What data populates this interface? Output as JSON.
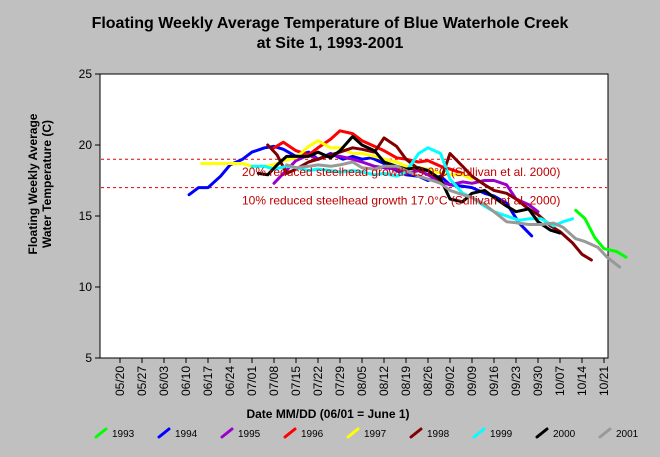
{
  "title_line1": "Floating Weekly Average Temperature of Blue Waterhole Creek",
  "title_line2": "at Site 1, 1993-2001",
  "chart_data": {
    "type": "line",
    "title": "Floating Weekly Average Temperature of Blue Waterhole Creek at Site 1, 1993-2001",
    "xlabel": "Date MM/DD (06/01 = June 1)",
    "ylabel_line1": "Floating Weekly Average",
    "ylabel_line2": "Water Temperature (C)",
    "ylim": [
      5,
      25
    ],
    "yticks": [
      5,
      10,
      15,
      20,
      25
    ],
    "x_ticks": [
      "05/20",
      "05/27",
      "06/03",
      "06/10",
      "06/17",
      "06/24",
      "07/01",
      "07/08",
      "07/15",
      "07/22",
      "07/29",
      "08/05",
      "08/12",
      "08/19",
      "08/26",
      "09/02",
      "09/09",
      "09/16",
      "09/23",
      "09/30",
      "10/07",
      "10/14",
      "10/21"
    ],
    "grid": false,
    "legend_position": "bottom",
    "reference_lines": [
      {
        "y": 19,
        "label": "20% reduced steelhead growth 19.0°C (Sullivan et al. 2000)",
        "color": "#e00000"
      },
      {
        "y": 17,
        "label": "10% reduced steelhead growth 17.0°C (Sullivan et al. 2000)",
        "color": "#e00000"
      }
    ],
    "series": [
      {
        "name": "1993",
        "color": "#00ff00",
        "points": [
          [
            "10/12",
            15.4
          ],
          [
            "10/15",
            14.8
          ],
          [
            "10/18",
            13.5
          ],
          [
            "10/21",
            12.7
          ],
          [
            "10/25",
            12.5
          ],
          [
            "10/28",
            12.1
          ]
        ]
      },
      {
        "name": "1994",
        "color": "#0000ff",
        "points": [
          [
            "06/11",
            16.5
          ],
          [
            "06/14",
            17.0
          ],
          [
            "06/17",
            17.0
          ],
          [
            "06/21",
            17.8
          ],
          [
            "06/24",
            18.6
          ],
          [
            "06/28",
            19.0
          ],
          [
            "07/01",
            19.5
          ],
          [
            "07/05",
            19.8
          ],
          [
            "07/08",
            19.9
          ],
          [
            "07/11",
            19.7
          ],
          [
            "07/15",
            19.2
          ],
          [
            "07/19",
            19.5
          ],
          [
            "07/22",
            19.0
          ],
          [
            "07/26",
            19.4
          ],
          [
            "07/30",
            19.0
          ],
          [
            "08/02",
            19.2
          ],
          [
            "08/05",
            19.0
          ],
          [
            "08/08",
            19.1
          ],
          [
            "08/12",
            18.7
          ],
          [
            "08/16",
            18.2
          ],
          [
            "08/19",
            17.9
          ],
          [
            "08/23",
            17.8
          ],
          [
            "08/26",
            17.5
          ],
          [
            "08/30",
            17.8
          ],
          [
            "09/02",
            17.2
          ],
          [
            "09/06",
            17.1
          ],
          [
            "09/09",
            17.0
          ],
          [
            "09/13",
            16.6
          ],
          [
            "09/16",
            16.4
          ],
          [
            "09/20",
            15.9
          ],
          [
            "09/24",
            14.5
          ],
          [
            "09/28",
            13.6
          ]
        ]
      },
      {
        "name": "1995",
        "color": "#9900cc",
        "points": [
          [
            "07/08",
            17.3
          ],
          [
            "07/11",
            18.0
          ],
          [
            "07/15",
            18.9
          ],
          [
            "07/19",
            19.3
          ],
          [
            "07/22",
            19.0
          ],
          [
            "07/26",
            19.3
          ],
          [
            "07/29",
            19.2
          ],
          [
            "08/02",
            19.0
          ],
          [
            "08/05",
            18.8
          ],
          [
            "08/09",
            18.5
          ],
          [
            "08/12",
            18.4
          ],
          [
            "08/16",
            18.3
          ],
          [
            "08/19",
            18.0
          ],
          [
            "08/23",
            18.2
          ],
          [
            "08/26",
            17.9
          ],
          [
            "08/30",
            17.4
          ],
          [
            "09/02",
            17.2
          ],
          [
            "09/06",
            17.4
          ],
          [
            "09/09",
            17.3
          ],
          [
            "09/13",
            17.5
          ],
          [
            "09/16",
            17.5
          ],
          [
            "09/20",
            17.2
          ],
          [
            "09/23",
            16.2
          ],
          [
            "09/27",
            15.8
          ],
          [
            "09/30",
            15.3
          ]
        ]
      },
      {
        "name": "1996",
        "color": "#ff0000",
        "points": [
          [
            "07/08",
            19.8
          ],
          [
            "07/11",
            20.2
          ],
          [
            "07/15",
            19.6
          ],
          [
            "07/19",
            19.3
          ],
          [
            "07/22",
            19.8
          ],
          [
            "07/26",
            20.4
          ],
          [
            "07/29",
            21.0
          ],
          [
            "08/02",
            20.8
          ],
          [
            "08/05",
            20.3
          ],
          [
            "08/09",
            19.9
          ],
          [
            "08/12",
            19.6
          ],
          [
            "08/16",
            19.1
          ],
          [
            "08/19",
            19.0
          ],
          [
            "08/23",
            18.8
          ],
          [
            "08/26",
            18.9
          ],
          [
            "08/30",
            18.5
          ],
          [
            "09/02",
            18.3
          ],
          [
            "09/06",
            18.0
          ]
        ]
      },
      {
        "name": "1997",
        "color": "#ffff00",
        "points": [
          [
            "06/15",
            18.7
          ],
          [
            "06/18",
            18.7
          ],
          [
            "06/21",
            18.7
          ],
          [
            "06/24",
            18.7
          ],
          [
            "06/28",
            18.7
          ],
          [
            "07/01",
            18.5
          ],
          [
            "07/05",
            18.5
          ],
          [
            "07/08",
            18.6
          ],
          [
            "07/11",
            18.9
          ],
          [
            "07/15",
            19.1
          ],
          [
            "07/19",
            19.9
          ],
          [
            "07/22",
            20.3
          ],
          [
            "07/26",
            19.8
          ],
          [
            "07/29",
            19.8
          ],
          [
            "08/02",
            19.4
          ],
          [
            "08/05",
            19.4
          ],
          [
            "08/09",
            19.2
          ],
          [
            "08/12",
            19.0
          ],
          [
            "08/16",
            18.8
          ],
          [
            "08/19",
            18.5
          ],
          [
            "08/23",
            18.4
          ],
          [
            "08/26",
            18.3
          ],
          [
            "08/30",
            18.0
          ],
          [
            "09/02",
            17.9
          ],
          [
            "09/06",
            17.9
          ],
          [
            "09/09",
            17.6
          ]
        ]
      },
      {
        "name": "1998",
        "color": "#800000",
        "points": [
          [
            "07/06",
            20.0
          ],
          [
            "07/09",
            19.3
          ],
          [
            "07/12",
            18.0
          ],
          [
            "07/15",
            18.3
          ],
          [
            "07/19",
            18.8
          ],
          [
            "07/22",
            19.0
          ],
          [
            "07/26",
            19.3
          ],
          [
            "07/29",
            19.5
          ],
          [
            "08/02",
            19.8
          ],
          [
            "08/05",
            19.7
          ],
          [
            "08/09",
            19.5
          ],
          [
            "08/12",
            20.5
          ],
          [
            "08/16",
            19.9
          ],
          [
            "08/19",
            19.0
          ],
          [
            "08/23",
            18.3
          ],
          [
            "08/26",
            18.2
          ],
          [
            "08/30",
            17.5
          ],
          [
            "09/02",
            19.4
          ],
          [
            "09/06",
            18.5
          ],
          [
            "09/09",
            17.8
          ],
          [
            "09/13",
            17.2
          ],
          [
            "09/16",
            16.8
          ],
          [
            "09/20",
            16.6
          ],
          [
            "09/23",
            16.2
          ],
          [
            "09/27",
            15.5
          ],
          [
            "09/30",
            15.1
          ],
          [
            "10/04",
            14.3
          ],
          [
            "10/07",
            13.9
          ],
          [
            "10/11",
            13.1
          ],
          [
            "10/14",
            12.3
          ],
          [
            "10/17",
            11.9
          ]
        ]
      },
      {
        "name": "1999",
        "color": "#00ffff",
        "points": [
          [
            "07/01",
            18.5
          ],
          [
            "07/05",
            18.5
          ],
          [
            "07/08",
            18.3
          ],
          [
            "07/12",
            18.5
          ],
          [
            "07/15",
            18.4
          ],
          [
            "07/19",
            18.2
          ],
          [
            "07/22",
            18.3
          ],
          [
            "07/26",
            18.2
          ],
          [
            "07/29",
            18.1
          ],
          [
            "08/02",
            18.2
          ],
          [
            "08/05",
            18.1
          ],
          [
            "08/09",
            17.9
          ],
          [
            "08/12",
            18.0
          ],
          [
            "08/16",
            17.8
          ],
          [
            "08/19",
            18.1
          ],
          [
            "08/23",
            19.4
          ],
          [
            "08/26",
            19.8
          ],
          [
            "08/30",
            19.4
          ],
          [
            "09/02",
            17.6
          ],
          [
            "09/06",
            16.6
          ],
          [
            "09/09",
            16.3
          ],
          [
            "09/13",
            15.7
          ],
          [
            "09/16",
            15.3
          ],
          [
            "09/20",
            15.0
          ],
          [
            "09/24",
            14.7
          ],
          [
            "09/27",
            14.8
          ],
          [
            "10/01",
            14.8
          ],
          [
            "10/05",
            14.3
          ],
          [
            "10/08",
            14.6
          ],
          [
            "10/11",
            14.8
          ]
        ]
      },
      {
        "name": "2000",
        "color": "#000000",
        "points": [
          [
            "07/03",
            18.0
          ],
          [
            "07/06",
            17.9
          ],
          [
            "07/09",
            18.6
          ],
          [
            "07/12",
            19.2
          ],
          [
            "07/15",
            19.2
          ],
          [
            "07/19",
            19.2
          ],
          [
            "07/22",
            19.5
          ],
          [
            "07/26",
            19.1
          ],
          [
            "07/29",
            19.6
          ],
          [
            "08/02",
            20.6
          ],
          [
            "08/05",
            20.0
          ],
          [
            "08/09",
            19.6
          ],
          [
            "08/12",
            18.8
          ],
          [
            "08/16",
            18.5
          ],
          [
            "08/19",
            18.3
          ],
          [
            "08/23",
            18.4
          ],
          [
            "08/26",
            18.2
          ],
          [
            "08/30",
            17.6
          ],
          [
            "09/02",
            16.2
          ],
          [
            "09/06",
            16.0
          ],
          [
            "09/09",
            16.6
          ],
          [
            "09/13",
            16.8
          ],
          [
            "09/16",
            16.3
          ],
          [
            "09/20",
            15.7
          ],
          [
            "09/23",
            15.3
          ],
          [
            "09/27",
            15.5
          ],
          [
            "09/30",
            14.6
          ],
          [
            "10/04",
            14.0
          ],
          [
            "10/07",
            13.8
          ]
        ]
      },
      {
        "name": "2001",
        "color": "#999999",
        "points": [
          [
            "07/12",
            18.6
          ],
          [
            "07/15",
            18.4
          ],
          [
            "07/19",
            18.5
          ],
          [
            "07/22",
            18.6
          ],
          [
            "07/26",
            18.5
          ],
          [
            "07/29",
            18.6
          ],
          [
            "08/02",
            18.8
          ],
          [
            "08/05",
            18.4
          ],
          [
            "08/09",
            18.3
          ],
          [
            "08/12",
            18.5
          ],
          [
            "08/16",
            18.5
          ],
          [
            "08/19",
            18.2
          ],
          [
            "08/23",
            17.8
          ],
          [
            "08/26",
            17.6
          ],
          [
            "08/30",
            17.3
          ],
          [
            "09/02",
            16.8
          ],
          [
            "09/06",
            16.5
          ],
          [
            "09/09",
            16.3
          ],
          [
            "09/13",
            15.8
          ],
          [
            "09/16",
            15.3
          ],
          [
            "09/20",
            14.6
          ],
          [
            "09/24",
            14.5
          ],
          [
            "09/27",
            14.4
          ],
          [
            "10/01",
            14.4
          ],
          [
            "10/05",
            14.5
          ],
          [
            "10/08",
            14.2
          ],
          [
            "10/12",
            13.4
          ],
          [
            "10/15",
            13.2
          ],
          [
            "10/19",
            12.8
          ],
          [
            "10/22",
            12.1
          ],
          [
            "10/26",
            11.4
          ]
        ]
      }
    ]
  }
}
